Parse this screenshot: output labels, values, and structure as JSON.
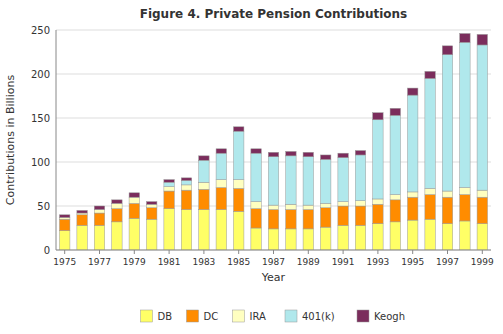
{
  "chart_data": {
    "type": "bar",
    "stacked": true,
    "title": "Figure 4. Private Pension Contributions",
    "xlabel": "Year",
    "ylabel": "Contributions in Billions",
    "categories": [
      "1975",
      null,
      "1977",
      null,
      "1979",
      null,
      "1981",
      null,
      "1983",
      null,
      "1985",
      null,
      "1987",
      null,
      "1989",
      null,
      "1991",
      null,
      "1993",
      null,
      "1995",
      null,
      "1997",
      null,
      "1999"
    ],
    "series": [
      {
        "name": "DB",
        "color": "#FFFF66",
        "values": [
          22,
          28,
          28,
          32,
          36,
          35,
          47,
          46,
          46,
          46,
          44,
          25,
          24,
          24,
          24,
          26,
          28,
          28,
          30,
          32,
          34,
          35,
          30,
          33,
          30
        ]
      },
      {
        "name": "DC",
        "color": "#FF8C00",
        "values": [
          13,
          12,
          14,
          15,
          17,
          13,
          20,
          22,
          23,
          25,
          26,
          22,
          22,
          22,
          22,
          22,
          22,
          22,
          22,
          25,
          26,
          28,
          30,
          30,
          30
        ]
      },
      {
        "name": "IRA",
        "color": "#FFFFC0",
        "values": [
          2,
          2,
          4,
          6,
          7,
          4,
          5,
          6,
          8,
          9,
          10,
          8,
          5,
          6,
          5,
          5,
          5,
          6,
          6,
          6,
          6,
          7,
          7,
          8,
          8
        ]
      },
      {
        "name": "401(k)",
        "color": "#B0E8EC",
        "values": [
          0,
          0,
          0,
          0,
          0,
          0,
          5,
          5,
          25,
          30,
          55,
          55,
          55,
          55,
          55,
          50,
          50,
          52,
          90,
          90,
          110,
          125,
          155,
          165,
          165
        ]
      },
      {
        "name": "Keogh",
        "color": "#7B2D5C",
        "values": [
          3,
          3,
          4,
          4,
          5,
          3,
          3,
          3,
          5,
          5,
          5,
          5,
          5,
          5,
          5,
          5,
          5,
          5,
          8,
          8,
          8,
          8,
          10,
          10,
          12
        ]
      }
    ],
    "ylim": [
      0,
      250
    ],
    "yticks": [
      0,
      50,
      100,
      150,
      200,
      250
    ],
    "grid": true,
    "legend": "bottom"
  }
}
